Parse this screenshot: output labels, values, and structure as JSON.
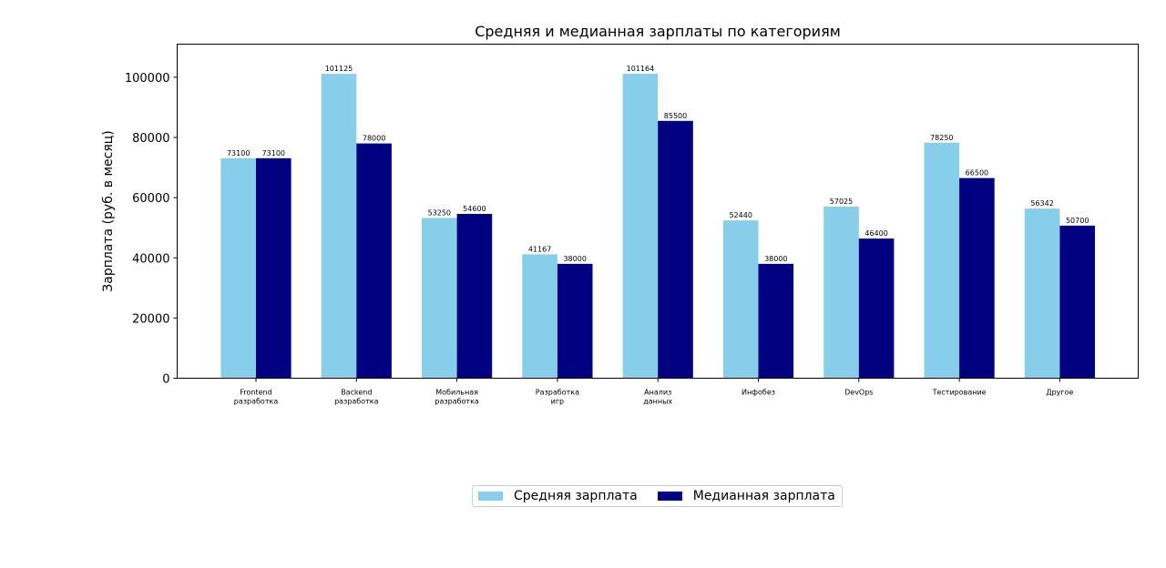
{
  "chart_data": {
    "type": "bar",
    "title": "Средняя и медианная зарплаты по категориям",
    "xlabel": "",
    "ylabel": "Зарплата (руб. в месяц)",
    "ylim": [
      0,
      111000
    ],
    "yticks": [
      0,
      20000,
      40000,
      60000,
      80000,
      100000
    ],
    "ytick_labels": [
      "0",
      "20000",
      "40000",
      "60000",
      "80000",
      "100000"
    ],
    "categories": [
      [
        "Frontend",
        "разработка"
      ],
      [
        "Backend",
        "разработка"
      ],
      [
        "Мобильная",
        "разработка"
      ],
      [
        "Разработка",
        "игр"
      ],
      [
        "Анализ",
        "данных"
      ],
      [
        "Инфобез"
      ],
      [
        "DevOps"
      ],
      [
        "Тестирование"
      ],
      [
        "Другое"
      ]
    ],
    "series": [
      {
        "name": "Средняя зарплата",
        "color": "#87ceeb",
        "values": [
          73100,
          101125,
          53250,
          41167,
          101164,
          52440,
          57025,
          78250,
          56342
        ]
      },
      {
        "name": "Медианная зарплата",
        "color": "#000080",
        "values": [
          73100,
          78000,
          54600,
          38000,
          85500,
          38000,
          46400,
          66500,
          50700
        ]
      }
    ],
    "data_labels": true,
    "grid": false,
    "legend_position": "bottom-center"
  }
}
